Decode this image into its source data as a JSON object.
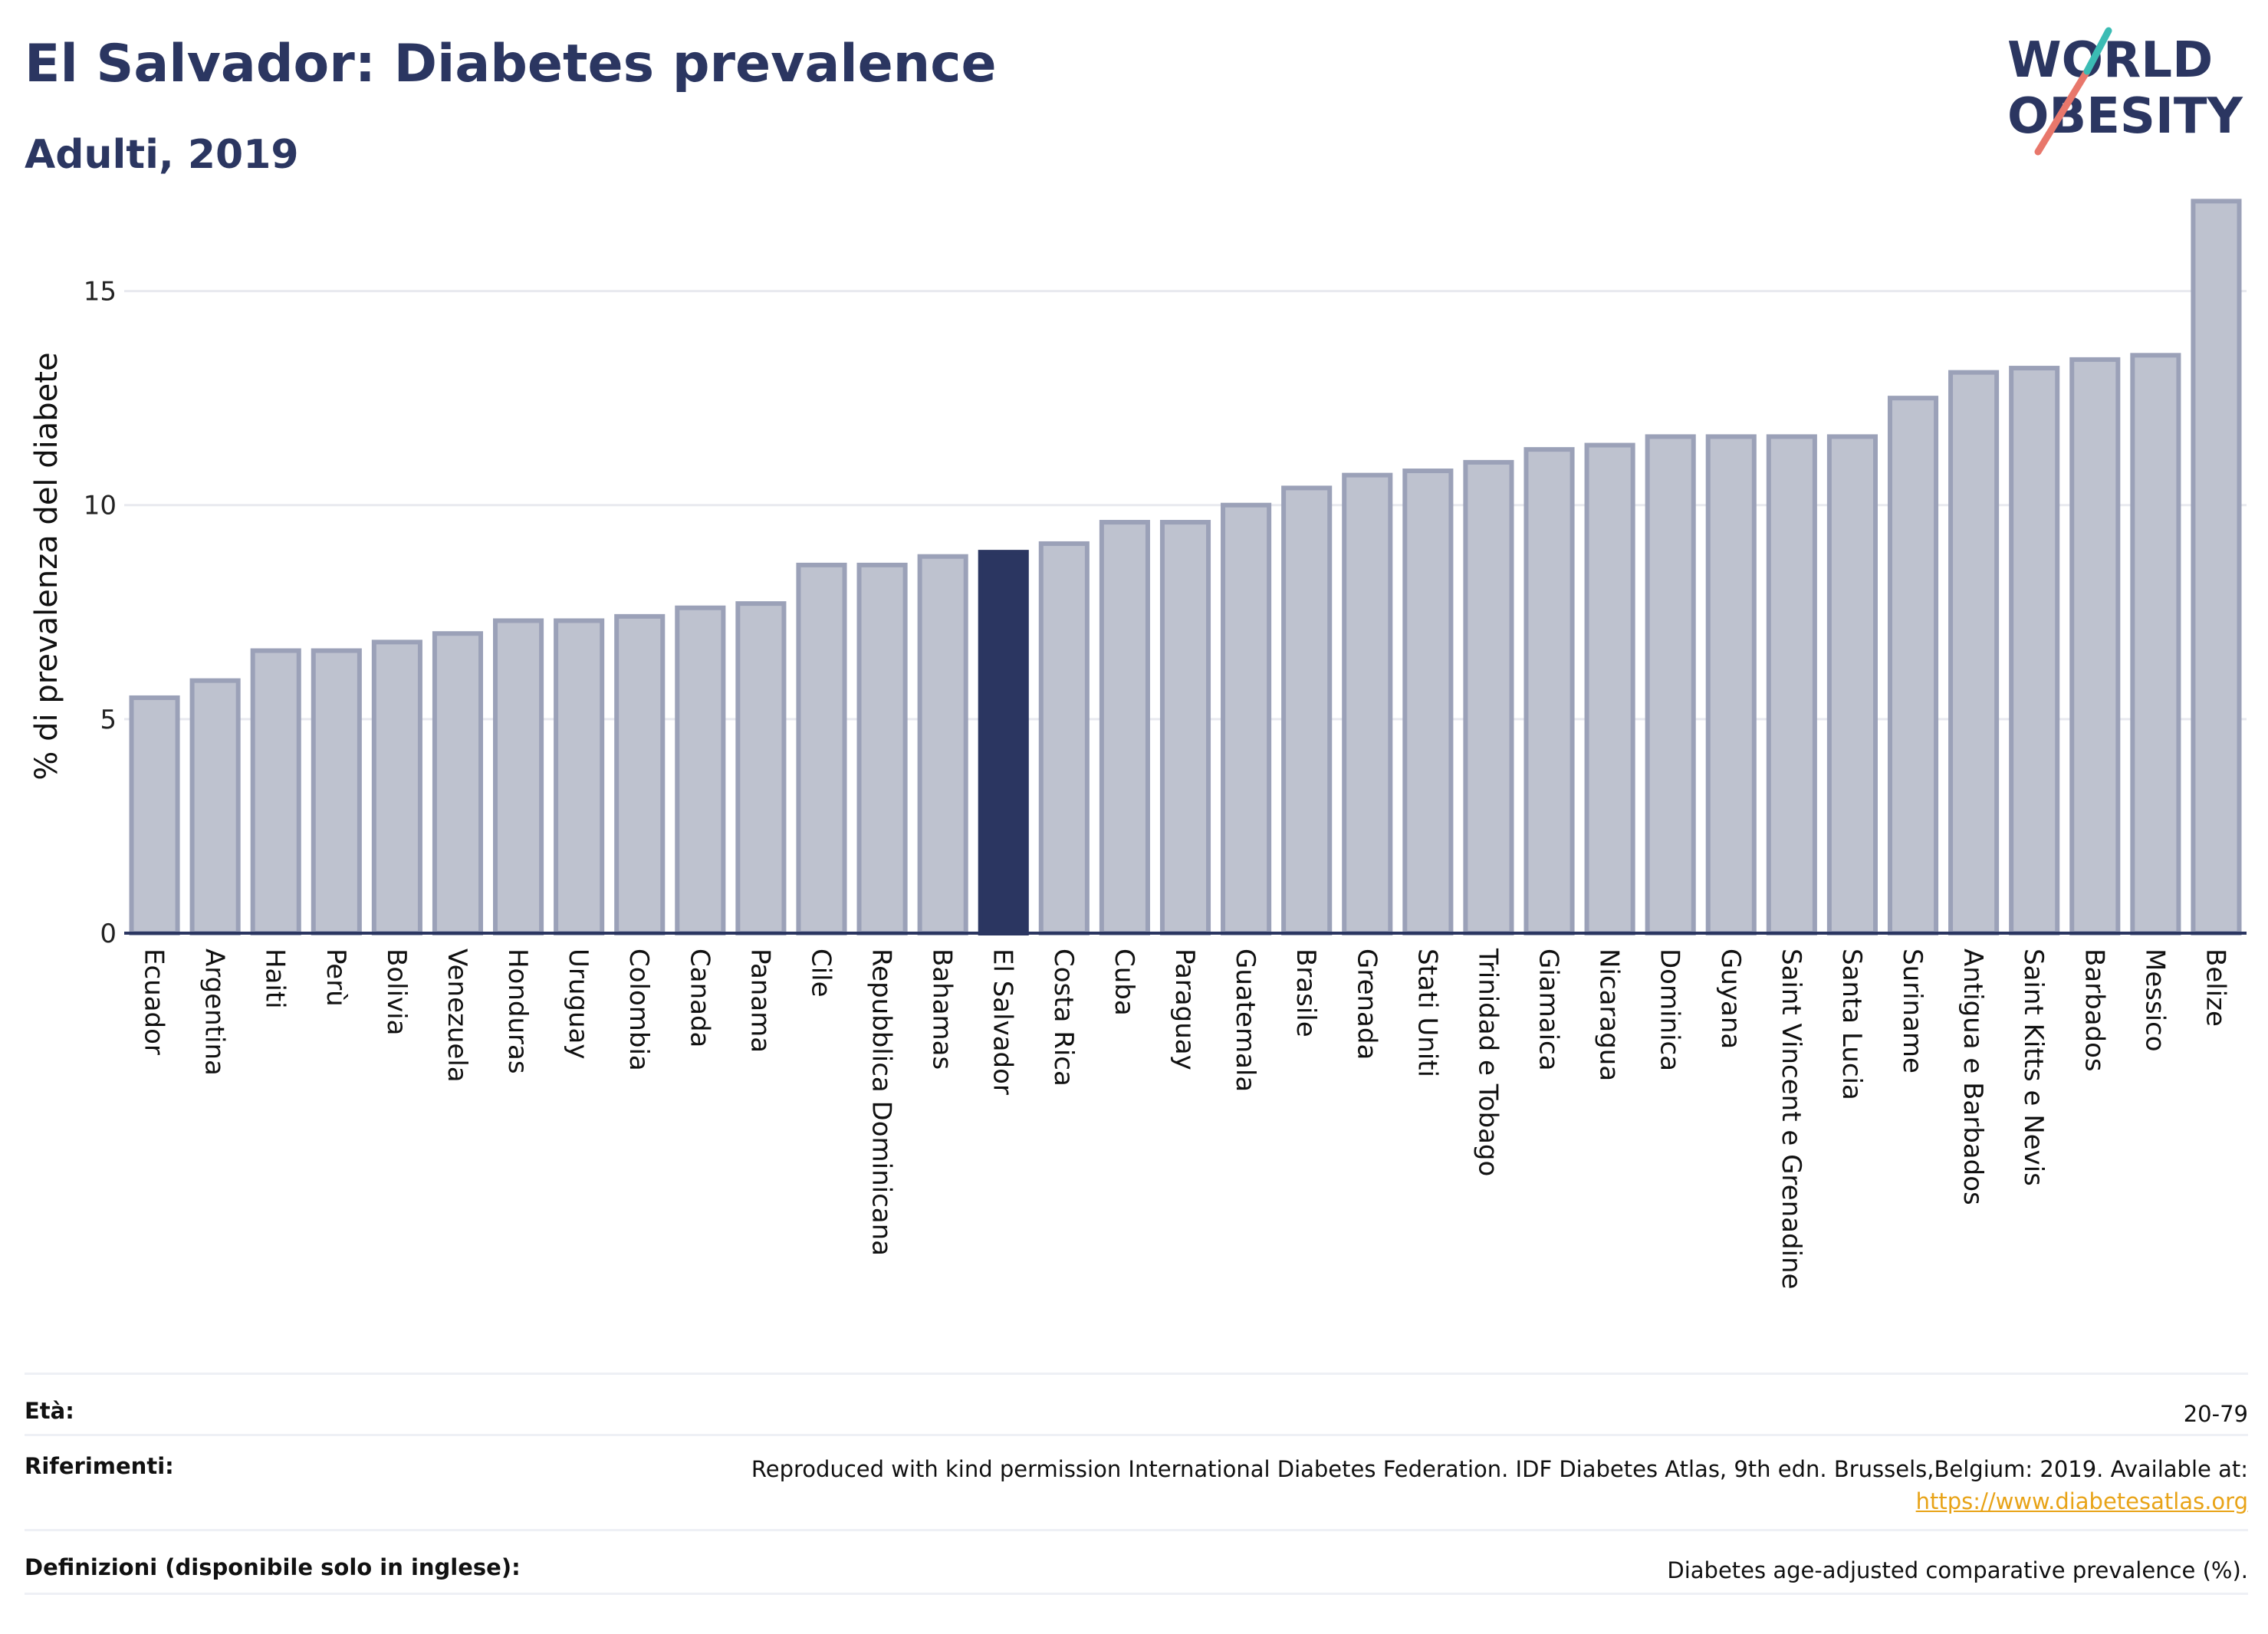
{
  "header": {
    "title": "El Salvador: Diabetes prevalence",
    "subtitle": "Adulti, 2019",
    "logo_line1": "WORLD",
    "logo_line2": "OBESITY"
  },
  "chart_data": {
    "type": "bar",
    "ylabel": "% di prevalenza del diabete",
    "xlabel": "",
    "ylim": [
      0,
      17.5
    ],
    "yticks": [
      0,
      5,
      10,
      15
    ],
    "grid": true,
    "highlight": "El Salvador",
    "colors": {
      "bar_fill": "#bec2cf",
      "bar_stroke": "#9ba1b8",
      "highlight": "#2b3661",
      "grid": "#e8e9ef",
      "axis": "#2b3661"
    },
    "categories": [
      "Ecuador",
      "Argentina",
      "Haiti",
      "Perù",
      "Bolivia",
      "Venezuela",
      "Honduras",
      "Uruguay",
      "Colombia",
      "Canada",
      "Panama",
      "Cile",
      "Repubblica Dominicana",
      "Bahamas",
      "El Salvador",
      "Costa Rica",
      "Cuba",
      "Paraguay",
      "Guatemala",
      "Brasile",
      "Grenada",
      "Stati Uniti",
      "Trinidad e Tobago",
      "Giamaica",
      "Nicaragua",
      "Dominica",
      "Guyana",
      "Saint Vincent e Grenadine",
      "Santa Lucia",
      "Suriname",
      "Antigua e Barbados",
      "Saint Kitts e Nevis",
      "Barbados",
      "Messico",
      "Belize"
    ],
    "values": [
      5.5,
      5.9,
      6.6,
      6.6,
      6.8,
      7.0,
      7.3,
      7.3,
      7.4,
      7.6,
      7.7,
      8.6,
      8.6,
      8.8,
      8.9,
      9.1,
      9.6,
      9.6,
      10.0,
      10.4,
      10.7,
      10.8,
      11.0,
      11.3,
      11.4,
      11.6,
      11.6,
      11.6,
      11.6,
      12.5,
      13.1,
      13.2,
      13.4,
      13.5,
      17.1
    ]
  },
  "footer": {
    "rows": [
      {
        "key": "Età:",
        "value": "20-79"
      },
      {
        "key": "Riferimenti:",
        "value": "Reproduced with kind permission International Diabetes Federation. IDF Diabetes Atlas, 9th edn. Brussels,Belgium: 2019. Available at:",
        "link": "https://www.diabetesatlas.org"
      },
      {
        "key": "Definizioni (disponibile solo in inglese):",
        "value": "Diabetes age-adjusted comparative prevalence (%)."
      }
    ]
  }
}
